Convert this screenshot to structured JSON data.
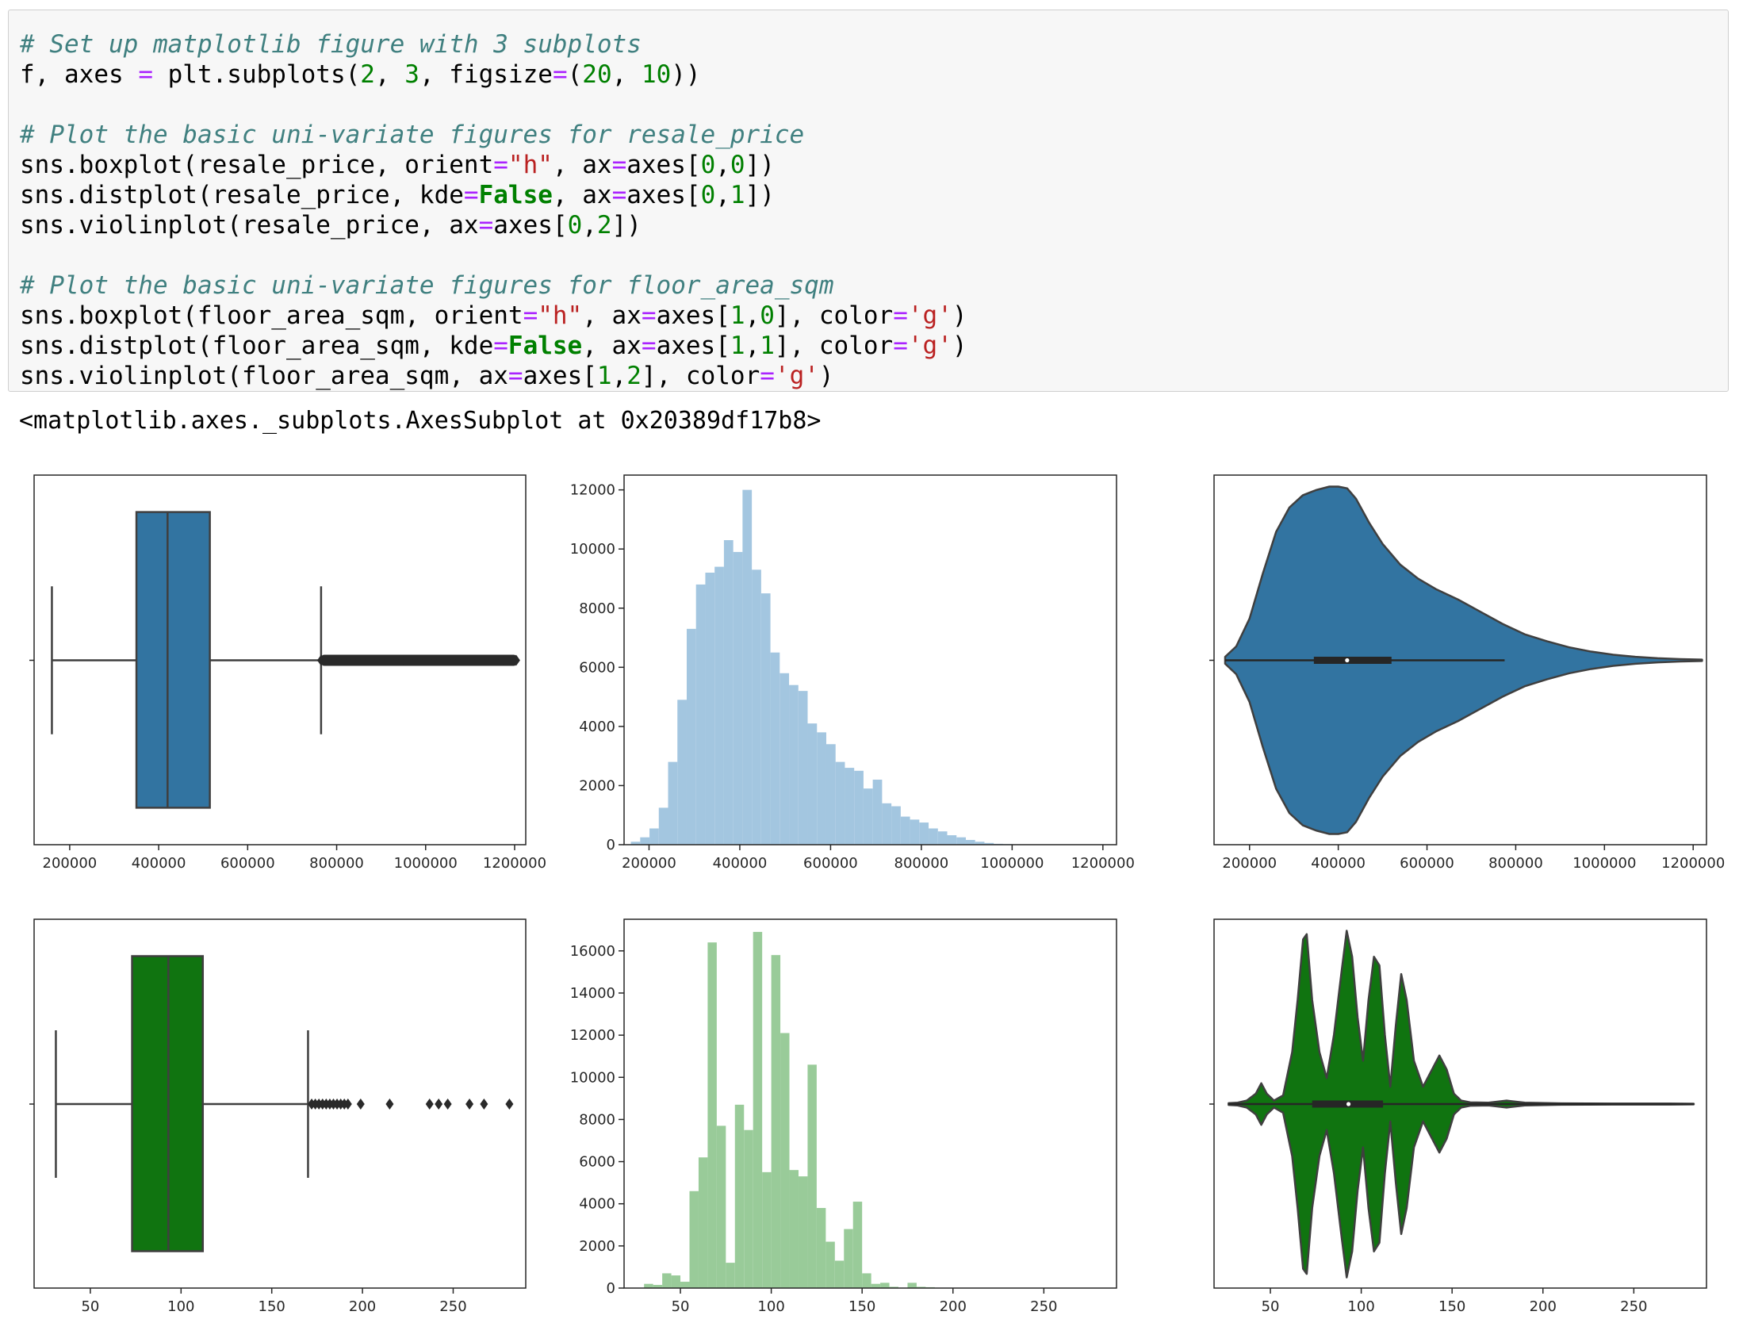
{
  "code_cell": {
    "lines": [
      [
        {
          "t": "# Set up matplotlib figure with 3 subplots",
          "c": "tk-c"
        }
      ],
      [
        {
          "t": "f, axes "
        },
        {
          "t": "=",
          "c": "tk-o"
        },
        {
          "t": " plt.subplots("
        },
        {
          "t": "2",
          "c": "tk-n"
        },
        {
          "t": ", "
        },
        {
          "t": "3",
          "c": "tk-n"
        },
        {
          "t": ", figsize"
        },
        {
          "t": "=",
          "c": "tk-o"
        },
        {
          "t": "("
        },
        {
          "t": "20",
          "c": "tk-n"
        },
        {
          "t": ", "
        },
        {
          "t": "10",
          "c": "tk-n"
        },
        {
          "t": "))"
        }
      ],
      [],
      [
        {
          "t": "# Plot the basic uni-variate figures for resale_price",
          "c": "tk-c"
        }
      ],
      [
        {
          "t": "sns.boxplot(resale_price, orient"
        },
        {
          "t": "=",
          "c": "tk-o"
        },
        {
          "t": "\"h\"",
          "c": "tk-s"
        },
        {
          "t": ", ax"
        },
        {
          "t": "=",
          "c": "tk-o"
        },
        {
          "t": "axes["
        },
        {
          "t": "0",
          "c": "tk-n"
        },
        {
          "t": ","
        },
        {
          "t": "0",
          "c": "tk-n"
        },
        {
          "t": "])"
        }
      ],
      [
        {
          "t": "sns.distplot(resale_price, kde"
        },
        {
          "t": "=",
          "c": "tk-o"
        },
        {
          "t": "False",
          "c": "tk-k"
        },
        {
          "t": ", ax"
        },
        {
          "t": "=",
          "c": "tk-o"
        },
        {
          "t": "axes["
        },
        {
          "t": "0",
          "c": "tk-n"
        },
        {
          "t": ","
        },
        {
          "t": "1",
          "c": "tk-n"
        },
        {
          "t": "])"
        }
      ],
      [
        {
          "t": "sns.violinplot(resale_price, ax"
        },
        {
          "t": "=",
          "c": "tk-o"
        },
        {
          "t": "axes["
        },
        {
          "t": "0",
          "c": "tk-n"
        },
        {
          "t": ","
        },
        {
          "t": "2",
          "c": "tk-n"
        },
        {
          "t": "])"
        }
      ],
      [],
      [
        {
          "t": "# Plot the basic uni-variate figures for floor_area_sqm",
          "c": "tk-c"
        }
      ],
      [
        {
          "t": "sns.boxplot(floor_area_sqm, orient"
        },
        {
          "t": "=",
          "c": "tk-o"
        },
        {
          "t": "\"h\"",
          "c": "tk-s"
        },
        {
          "t": ", ax"
        },
        {
          "t": "=",
          "c": "tk-o"
        },
        {
          "t": "axes["
        },
        {
          "t": "1",
          "c": "tk-n"
        },
        {
          "t": ","
        },
        {
          "t": "0",
          "c": "tk-n"
        },
        {
          "t": "], color"
        },
        {
          "t": "=",
          "c": "tk-o"
        },
        {
          "t": "'g'",
          "c": "tk-s"
        },
        {
          "t": ")"
        }
      ],
      [
        {
          "t": "sns.distplot(floor_area_sqm, kde"
        },
        {
          "t": "=",
          "c": "tk-o"
        },
        {
          "t": "False",
          "c": "tk-k"
        },
        {
          "t": ", ax"
        },
        {
          "t": "=",
          "c": "tk-o"
        },
        {
          "t": "axes["
        },
        {
          "t": "1",
          "c": "tk-n"
        },
        {
          "t": ","
        },
        {
          "t": "1",
          "c": "tk-n"
        },
        {
          "t": "], color"
        },
        {
          "t": "=",
          "c": "tk-o"
        },
        {
          "t": "'g'",
          "c": "tk-s"
        },
        {
          "t": ")"
        }
      ],
      [
        {
          "t": "sns.violinplot(floor_area_sqm, ax"
        },
        {
          "t": "=",
          "c": "tk-o"
        },
        {
          "t": "axes["
        },
        {
          "t": "1",
          "c": "tk-n"
        },
        {
          "t": ","
        },
        {
          "t": "2",
          "c": "tk-n"
        },
        {
          "t": "], color"
        },
        {
          "t": "=",
          "c": "tk-o"
        },
        {
          "t": "'g'",
          "c": "tk-s"
        },
        {
          "t": ")"
        }
      ]
    ]
  },
  "output": {
    "text": "<matplotlib.axes._subplots.AxesSubplot at 0x20389df17b8>"
  },
  "chart_data": [
    {
      "type": "box",
      "title": "",
      "xlabel": "",
      "ylabel": "",
      "color": "#3274a1",
      "xlim": [
        120000,
        1225000
      ],
      "xticks": [
        200000,
        400000,
        600000,
        800000,
        1000000,
        1200000
      ],
      "whisker_low": 160000,
      "q1": 350000,
      "median": 420000,
      "q3": 515000,
      "whisker_high": 765000,
      "outliers_range": [
        765000,
        1205000
      ]
    },
    {
      "type": "bar",
      "title": "",
      "xlabel": "",
      "ylabel": "",
      "color": "#a3c6e0",
      "xlim": [
        145000,
        1230000
      ],
      "ylim": [
        0,
        12500
      ],
      "xticks": [
        200000,
        400000,
        600000,
        800000,
        1000000,
        1200000
      ],
      "yticks": [
        0,
        2000,
        4000,
        6000,
        8000,
        10000,
        12000
      ],
      "bin_start": 160000,
      "bin_width": 20500,
      "values": [
        100,
        250,
        550,
        1250,
        2800,
        4900,
        7300,
        8800,
        9200,
        9400,
        10300,
        9900,
        12000,
        9300,
        8500,
        6500,
        5800,
        5400,
        5200,
        4100,
        3800,
        3400,
        2800,
        2600,
        2500,
        1900,
        2200,
        1400,
        1300,
        950,
        850,
        750,
        550,
        450,
        320,
        250,
        160,
        100,
        60,
        30,
        20,
        10
      ]
    },
    {
      "type": "violin",
      "title": "",
      "xlabel": "",
      "ylabel": "",
      "color": "#3274a1",
      "xlim": [
        120000,
        1230000
      ],
      "xticks": [
        200000,
        400000,
        600000,
        800000,
        1000000,
        1200000
      ],
      "x": [
        145000,
        170000,
        200000,
        230000,
        260000,
        290000,
        320000,
        350000,
        380000,
        400000,
        420000,
        440000,
        470000,
        500000,
        540000,
        580000,
        620000,
        670000,
        720000,
        770000,
        820000,
        870000,
        920000,
        970000,
        1020000,
        1070000,
        1120000,
        1170000,
        1220000
      ],
      "density": [
        0.02,
        0.08,
        0.24,
        0.5,
        0.74,
        0.88,
        0.95,
        0.98,
        1.0,
        1.0,
        0.99,
        0.93,
        0.79,
        0.67,
        0.55,
        0.47,
        0.41,
        0.35,
        0.28,
        0.21,
        0.15,
        0.11,
        0.075,
        0.05,
        0.032,
        0.02,
        0.012,
        0.007,
        0.004
      ],
      "q1": 345000,
      "median": 420000,
      "q3": 520000,
      "whisker_high": 775000
    },
    {
      "type": "box",
      "title": "",
      "xlabel": "",
      "ylabel": "",
      "color": "#107410",
      "xlim": [
        19,
        290
      ],
      "xticks": [
        50,
        100,
        150,
        200,
        250
      ],
      "whisker_low": 31,
      "q1": 73,
      "median": 93,
      "q3": 112,
      "whisker_high": 170,
      "outliers": [
        172,
        174,
        176,
        178,
        180,
        182,
        184,
        186,
        188,
        190,
        192,
        199,
        215,
        237,
        242,
        247,
        259,
        267,
        281
      ]
    },
    {
      "type": "bar",
      "title": "",
      "xlabel": "",
      "ylabel": "",
      "color": "#99cb99",
      "xlim": [
        19,
        290
      ],
      "ylim": [
        0,
        17500
      ],
      "xticks": [
        50,
        100,
        150,
        200,
        250
      ],
      "yticks": [
        0,
        2000,
        4000,
        6000,
        8000,
        10000,
        12000,
        14000,
        16000
      ],
      "bin_start": 30,
      "bin_width": 5,
      "values": [
        200,
        150,
        700,
        600,
        300,
        4600,
        6200,
        16400,
        7700,
        1200,
        8700,
        7500,
        16900,
        5500,
        15800,
        12100,
        5600,
        5300,
        10600,
        3800,
        2200,
        1300,
        2800,
        4100,
        700,
        200,
        250,
        60,
        0,
        250,
        60,
        40,
        20
      ]
    },
    {
      "type": "violin",
      "title": "",
      "xlabel": "",
      "ylabel": "",
      "color": "#107410",
      "xlim": [
        19,
        290
      ],
      "xticks": [
        50,
        100,
        150,
        200,
        250
      ],
      "x": [
        27,
        32,
        37,
        42,
        45,
        48,
        52,
        57,
        62,
        65,
        68,
        70,
        73,
        77,
        81,
        85,
        89,
        92,
        95,
        98,
        101,
        104,
        107,
        110,
        113,
        116,
        119,
        122,
        125,
        129,
        134,
        139,
        143,
        147,
        151,
        155,
        160,
        170,
        180,
        190,
        210,
        240,
        270,
        283
      ],
      "density": [
        0.005,
        0.008,
        0.02,
        0.06,
        0.12,
        0.06,
        0.02,
        0.05,
        0.3,
        0.6,
        0.95,
        0.98,
        0.6,
        0.3,
        0.15,
        0.4,
        0.75,
        1.0,
        0.85,
        0.5,
        0.25,
        0.6,
        0.85,
        0.8,
        0.4,
        0.1,
        0.45,
        0.75,
        0.6,
        0.25,
        0.1,
        0.2,
        0.28,
        0.2,
        0.06,
        0.02,
        0.01,
        0.008,
        0.02,
        0.008,
        0.004,
        0.003,
        0.003,
        0.002
      ],
      "q1": 73,
      "median": 93,
      "q3": 112,
      "whisker_low": 27,
      "whisker_high": 283
    }
  ]
}
